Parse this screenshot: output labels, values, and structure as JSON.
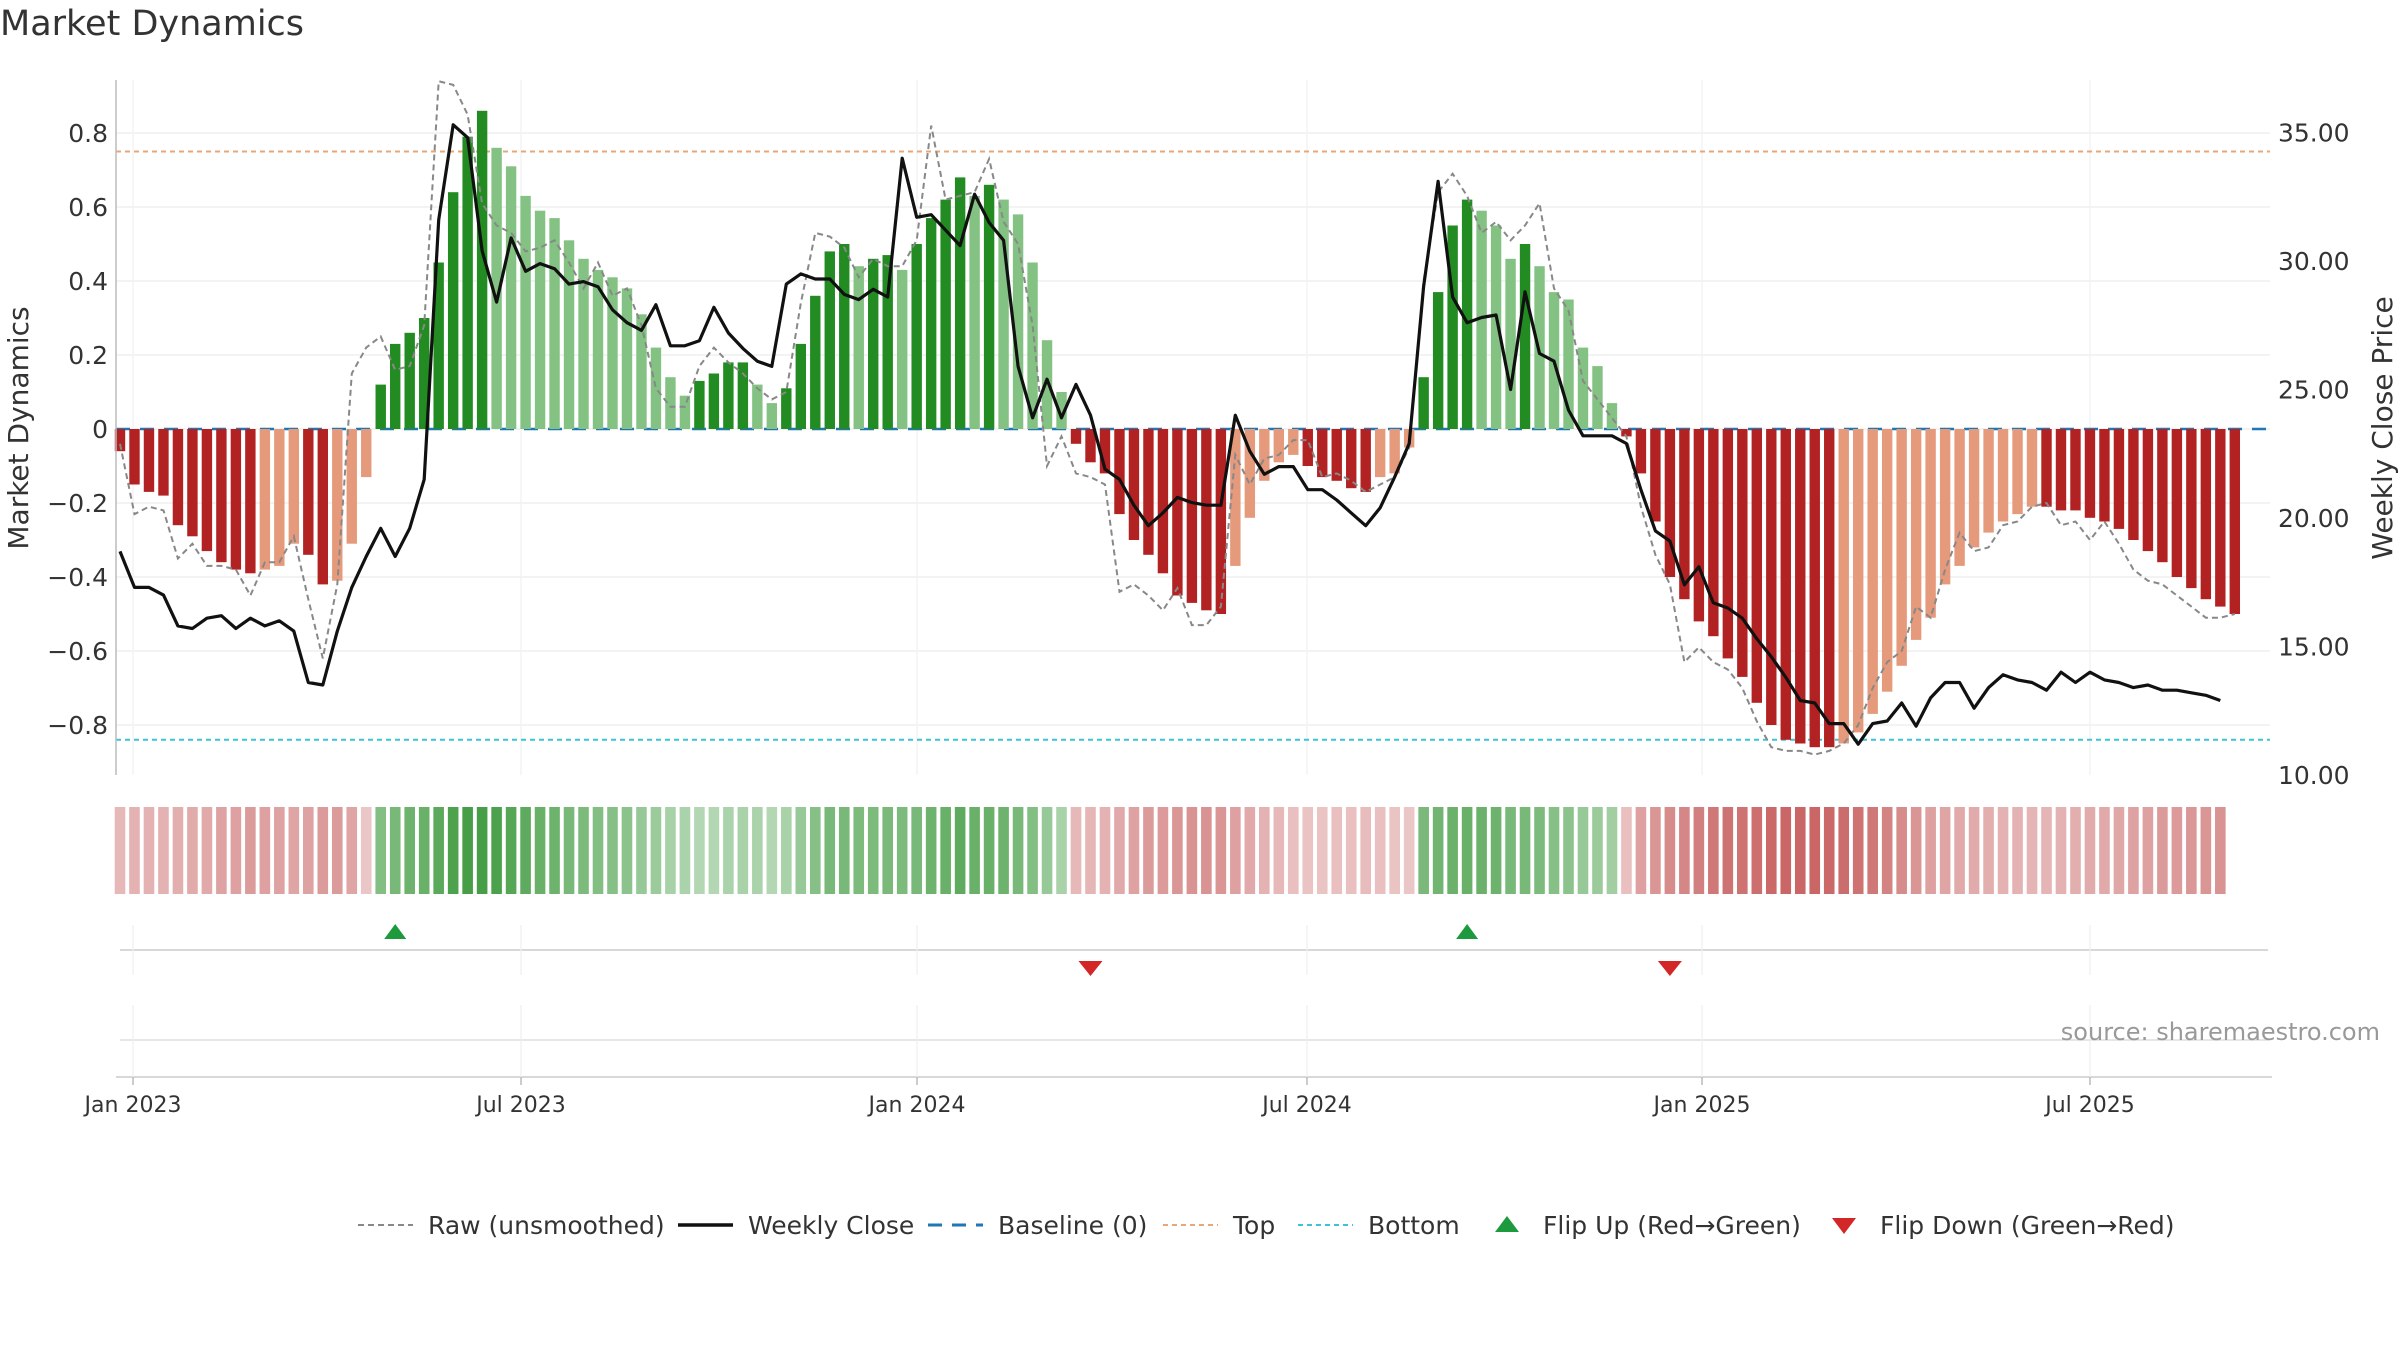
{
  "chart_data": {
    "type": "bar",
    "title": "Market Dynamics",
    "ylabel": "Market Dynamics",
    "y2label": "Weekly Close Price",
    "source": "source: sharemaestro.com",
    "ylim": [
      -0.95,
      0.95
    ],
    "y2lim": [
      10,
      36.6
    ],
    "yticks": [
      "0.8",
      "0.6",
      "0.4",
      "0.2",
      "0",
      "−0.2",
      "−0.4",
      "−0.6",
      "−0.8"
    ],
    "y2ticks": [
      "35.00",
      "30.00",
      "25.00",
      "20.00",
      "15.00",
      "10.00"
    ],
    "xticks": [
      "Jan 2023",
      "Jul 2023",
      "Jan 2024",
      "Jul 2024",
      "Jan 2025",
      "Jul 2025"
    ],
    "top_line": 0.75,
    "bottom_line": -0.84,
    "grid": true,
    "legend_position": "bottom",
    "legend": [
      {
        "key": "raw",
        "label": "Raw (unsmoothed)"
      },
      {
        "key": "close",
        "label": "Weekly Close"
      },
      {
        "key": "baseline",
        "label": "Baseline (0)"
      },
      {
        "key": "top",
        "label": "Top"
      },
      {
        "key": "bottom",
        "label": "Bottom"
      },
      {
        "key": "up",
        "label": "Flip Up (Red→Green)"
      },
      {
        "key": "down",
        "label": "Flip Down (Green→Red)"
      }
    ],
    "colors": {
      "dark_green": "#228b22",
      "light_green": "#83c283",
      "dark_red": "#b22222",
      "light_red": "#e59a7c",
      "top": "#e6a87a",
      "bottom": "#3cc3d8",
      "baseline": "#1f77b4",
      "raw": "#888888",
      "close": "#111111",
      "flip_up": "#1e9a3e",
      "flip_down": "#d32626"
    },
    "weeks": 150,
    "momentum": [
      -0.06,
      -0.15,
      -0.17,
      -0.18,
      -0.26,
      -0.29,
      -0.33,
      -0.36,
      -0.38,
      -0.39,
      -0.38,
      -0.37,
      -0.31,
      -0.34,
      -0.42,
      -0.41,
      -0.31,
      -0.13,
      0.12,
      0.23,
      0.26,
      0.3,
      0.45,
      0.64,
      0.79,
      0.86,
      0.76,
      0.71,
      0.63,
      0.59,
      0.57,
      0.51,
      0.46,
      0.43,
      0.41,
      0.38,
      0.31,
      0.22,
      0.14,
      0.09,
      0.13,
      0.15,
      0.18,
      0.18,
      0.12,
      0.07,
      0.11,
      0.23,
      0.36,
      0.48,
      0.5,
      0.44,
      0.46,
      0.47,
      0.43,
      0.5,
      0.57,
      0.62,
      0.68,
      0.63,
      0.66,
      0.62,
      0.58,
      0.45,
      0.24,
      0.1,
      -0.04,
      -0.09,
      -0.12,
      -0.23,
      -0.3,
      -0.34,
      -0.39,
      -0.45,
      -0.47,
      -0.49,
      -0.5,
      -0.37,
      -0.24,
      -0.14,
      -0.09,
      -0.07,
      -0.1,
      -0.13,
      -0.14,
      -0.16,
      -0.17,
      -0.13,
      -0.12,
      -0.05,
      0.14,
      0.37,
      0.55,
      0.62,
      0.59,
      0.55,
      0.46,
      0.5,
      0.44,
      0.37,
      0.35,
      0.22,
      0.17,
      0.07,
      -0.02,
      -0.12,
      -0.25,
      -0.4,
      -0.46,
      -0.52,
      -0.56,
      -0.62,
      -0.67,
      -0.74,
      -0.8,
      -0.84,
      -0.85,
      -0.86,
      -0.86,
      -0.85,
      -0.82,
      -0.77,
      -0.71,
      -0.64,
      -0.57,
      -0.51,
      -0.42,
      -0.37,
      -0.32,
      -0.28,
      -0.25,
      -0.23,
      -0.21,
      -0.21,
      -0.22,
      -0.22,
      -0.24,
      -0.25,
      -0.27,
      -0.3,
      -0.33,
      -0.36,
      -0.4,
      -0.43,
      -0.46,
      -0.48,
      -0.5
    ],
    "raw": [
      -0.04,
      -0.23,
      -0.21,
      -0.22,
      -0.35,
      -0.31,
      -0.37,
      -0.37,
      -0.38,
      -0.45,
      -0.36,
      -0.36,
      -0.29,
      -0.46,
      -0.62,
      -0.42,
      0.15,
      0.22,
      0.25,
      0.16,
      0.17,
      0.28,
      0.94,
      0.93,
      0.85,
      0.61,
      0.55,
      0.53,
      0.48,
      0.49,
      0.51,
      0.45,
      0.38,
      0.45,
      0.36,
      0.38,
      0.28,
      0.11,
      0.06,
      0.06,
      0.17,
      0.22,
      0.18,
      0.15,
      0.11,
      0.08,
      0.1,
      0.34,
      0.53,
      0.52,
      0.49,
      0.41,
      0.46,
      0.44,
      0.44,
      0.51,
      0.82,
      0.62,
      0.63,
      0.64,
      0.73,
      0.56,
      0.5,
      0.28,
      -0.1,
      -0.02,
      -0.12,
      -0.13,
      -0.15,
      -0.44,
      -0.42,
      -0.45,
      -0.49,
      -0.43,
      -0.53,
      -0.53,
      -0.48,
      -0.07,
      -0.15,
      -0.08,
      -0.07,
      -0.03,
      -0.03,
      -0.13,
      -0.12,
      -0.14,
      -0.17,
      -0.15,
      -0.13,
      -0.05,
      0.4,
      0.64,
      0.69,
      0.63,
      0.53,
      0.56,
      0.51,
      0.55,
      0.61,
      0.38,
      0.32,
      0.13,
      0.08,
      0.03,
      -0.02,
      -0.21,
      -0.34,
      -0.42,
      -0.63,
      -0.59,
      -0.63,
      -0.65,
      -0.7,
      -0.79,
      -0.86,
      -0.87,
      -0.87,
      -0.88,
      -0.87,
      -0.85,
      -0.8,
      -0.7,
      -0.63,
      -0.6,
      -0.48,
      -0.51,
      -0.38,
      -0.28,
      -0.33,
      -0.32,
      -0.26,
      -0.25,
      -0.21,
      -0.2,
      -0.26,
      -0.25,
      -0.3,
      -0.25,
      -0.31,
      -0.38,
      -0.41,
      -0.42,
      -0.45,
      -0.48,
      -0.51,
      -0.51,
      -0.5
    ],
    "close": [
      18.7,
      17.3,
      17.3,
      17.0,
      15.8,
      15.7,
      16.1,
      16.2,
      15.7,
      16.1,
      15.8,
      16.0,
      15.6,
      13.6,
      13.5,
      15.6,
      17.3,
      18.5,
      19.6,
      18.5,
      19.6,
      21.5,
      31.6,
      35.3,
      34.8,
      30.4,
      28.4,
      30.9,
      29.6,
      29.9,
      29.7,
      29.1,
      29.2,
      29.0,
      28.1,
      27.6,
      27.3,
      28.3,
      26.7,
      26.7,
      26.9,
      28.2,
      27.2,
      26.6,
      26.1,
      25.9,
      29.1,
      29.5,
      29.3,
      29.3,
      28.7,
      28.5,
      28.9,
      28.6,
      34.0,
      31.7,
      31.8,
      31.2,
      30.6,
      32.6,
      31.5,
      30.8,
      25.9,
      23.9,
      25.4,
      23.9,
      25.2,
      24.0,
      21.9,
      21.5,
      20.5,
      19.7,
      20.2,
      20.8,
      20.6,
      20.5,
      20.5,
      24.0,
      22.6,
      21.7,
      22.0,
      22.0,
      21.1,
      21.1,
      20.7,
      20.2,
      19.7,
      20.4,
      21.6,
      22.9,
      29.0,
      33.1,
      28.6,
      27.6,
      27.8,
      27.9,
      25.0,
      28.8,
      26.4,
      26.1,
      24.2,
      23.2,
      23.2,
      23.2,
      22.9,
      21.1,
      19.5,
      19.1,
      17.4,
      18.1,
      16.7,
      16.5,
      16.1,
      15.3,
      14.6,
      13.8,
      12.9,
      12.8,
      12.0,
      12.0,
      11.2,
      12.0,
      12.1,
      12.8,
      11.9,
      13.0,
      13.6,
      13.6,
      12.6,
      13.4,
      13.9,
      13.7,
      13.6,
      13.3,
      14.0,
      13.6,
      14.0,
      13.7,
      13.6,
      13.4,
      13.5,
      13.3,
      13.3,
      13.2,
      13.1,
      12.9
    ],
    "heat": [
      -0.3,
      -0.35,
      -0.35,
      -0.35,
      -0.38,
      -0.4,
      -0.43,
      -0.47,
      -0.5,
      -0.52,
      -0.5,
      -0.48,
      -0.45,
      -0.48,
      -0.52,
      -0.53,
      -0.45,
      -0.2,
      0.55,
      0.62,
      0.68,
      0.72,
      0.8,
      0.88,
      0.95,
      0.95,
      0.9,
      0.85,
      0.78,
      0.72,
      0.68,
      0.62,
      0.58,
      0.55,
      0.52,
      0.48,
      0.42,
      0.38,
      0.32,
      0.28,
      0.25,
      0.24,
      0.28,
      0.3,
      0.28,
      0.24,
      0.3,
      0.42,
      0.52,
      0.62,
      0.62,
      0.58,
      0.58,
      0.6,
      0.58,
      0.62,
      0.68,
      0.72,
      0.78,
      0.72,
      0.72,
      0.68,
      0.62,
      0.55,
      0.42,
      0.3,
      -0.3,
      -0.32,
      -0.35,
      -0.42,
      -0.48,
      -0.52,
      -0.55,
      -0.58,
      -0.6,
      -0.6,
      -0.58,
      -0.5,
      -0.42,
      -0.35,
      -0.3,
      -0.25,
      -0.22,
      -0.22,
      -0.24,
      -0.25,
      -0.26,
      -0.24,
      -0.22,
      -0.2,
      0.6,
      0.65,
      0.7,
      0.72,
      0.7,
      0.68,
      0.62,
      0.62,
      0.58,
      0.52,
      0.48,
      0.42,
      0.38,
      0.34,
      -0.25,
      -0.5,
      -0.58,
      -0.65,
      -0.7,
      -0.75,
      -0.8,
      -0.84,
      -0.86,
      -0.88,
      -0.92,
      -0.95,
      -0.95,
      -0.95,
      -0.93,
      -0.9,
      -0.85,
      -0.8,
      -0.72,
      -0.65,
      -0.58,
      -0.5,
      -0.45,
      -0.42,
      -0.4,
      -0.38,
      -0.36,
      -0.35,
      -0.34,
      -0.34,
      -0.36,
      -0.38,
      -0.4,
      -0.42,
      -0.44,
      -0.48,
      -0.5,
      -0.52,
      -0.55,
      -0.57,
      -0.58,
      -0.6
    ],
    "flips": [
      {
        "week": 19,
        "direction": "up"
      },
      {
        "week": 67,
        "direction": "down"
      },
      {
        "week": 93,
        "direction": "up"
      },
      {
        "week": 107,
        "direction": "down"
      }
    ]
  }
}
